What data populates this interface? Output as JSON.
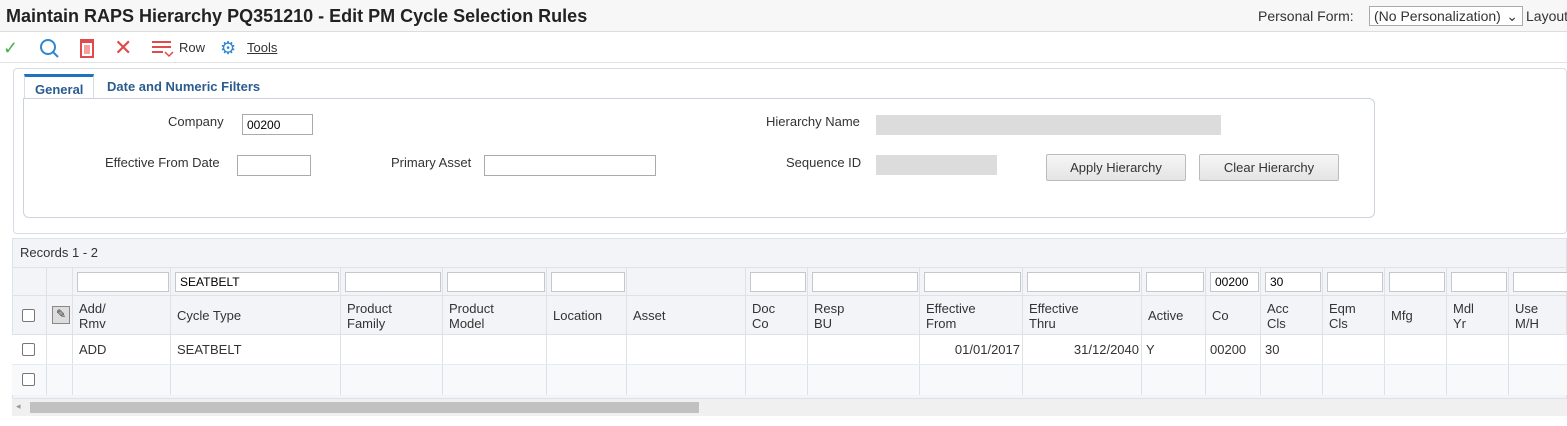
{
  "header": {
    "title": "Maintain RAPS Hierarchy PQ351210 - Edit PM Cycle Selection Rules",
    "personal_form_label": "Personal Form:",
    "personal_form_value": "(No Personalization)",
    "layout_label": "Layout"
  },
  "toolbar": {
    "row_label": "Row",
    "tools_label": "Tools",
    "colors": {
      "ok": "#4caf50",
      "search": "#2f86d1",
      "delete": "#e04a4a"
    }
  },
  "tabs": [
    {
      "label": "General",
      "active": true
    },
    {
      "label": "Date and Numeric Filters",
      "active": false
    }
  ],
  "form": {
    "company_label": "Company",
    "company_value": "00200",
    "effective_from_label": "Effective From Date",
    "effective_from_value": "",
    "primary_asset_label": "Primary Asset",
    "primary_asset_value": "",
    "hierarchy_name_label": "Hierarchy Name",
    "sequence_id_label": "Sequence ID",
    "apply_button": "Apply Hierarchy",
    "clear_button": "Clear Hierarchy"
  },
  "grid": {
    "records_label": "Records 1 - 2",
    "columns": [
      {
        "l1": "Add/",
        "l2": "Rmv",
        "qbe": ""
      },
      {
        "l1": "Cycle Type",
        "l2": "",
        "qbe": "SEATBELT"
      },
      {
        "l1": "Product",
        "l2": "Family",
        "qbe": ""
      },
      {
        "l1": "Product",
        "l2": "Model",
        "qbe": ""
      },
      {
        "l1": "Location",
        "l2": "",
        "qbe": ""
      },
      {
        "l1": "Asset",
        "l2": "",
        "qbe": null
      },
      {
        "l1": "Doc",
        "l2": "Co",
        "qbe": ""
      },
      {
        "l1": "Resp",
        "l2": "BU",
        "qbe": ""
      },
      {
        "l1": "Effective",
        "l2": "From",
        "qbe": ""
      },
      {
        "l1": "Effective",
        "l2": "Thru",
        "qbe": ""
      },
      {
        "l1": "Active",
        "l2": "",
        "qbe": ""
      },
      {
        "l1": "Co",
        "l2": "",
        "qbe": "00200"
      },
      {
        "l1": "Acc",
        "l2": "Cls",
        "qbe": "30"
      },
      {
        "l1": "Eqm",
        "l2": "Cls",
        "qbe": ""
      },
      {
        "l1": "Mfg",
        "l2": "",
        "qbe": ""
      },
      {
        "l1": "Mdl",
        "l2": "Yr",
        "qbe": ""
      },
      {
        "l1": "Use",
        "l2": "M/H",
        "qbe": ""
      }
    ],
    "rows": [
      [
        "ADD",
        "SEATBELT",
        "",
        "",
        "",
        "",
        "",
        "",
        "01/01/2017",
        "31/12/2040",
        "Y",
        "00200",
        "30",
        "",
        "",
        "",
        ""
      ],
      [
        "",
        "",
        "",
        "",
        "",
        "",
        "",
        "",
        "",
        "",
        "",
        "",
        "",
        "",
        "",
        "",
        ""
      ]
    ]
  }
}
